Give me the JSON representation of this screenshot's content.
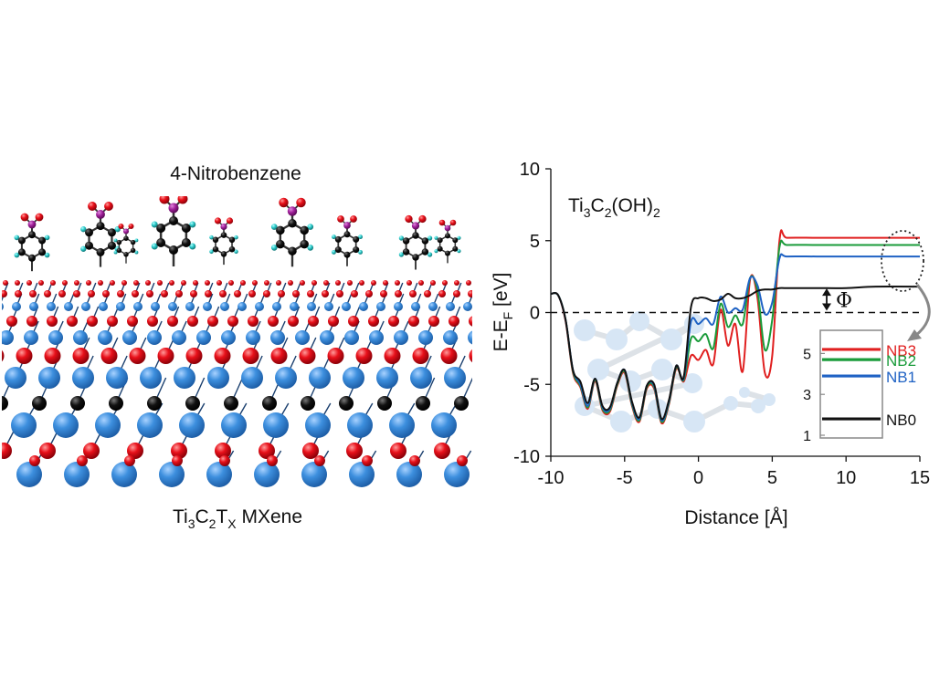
{
  "left_panel": {
    "top_label": "4-Nitrobenzene",
    "bottom_label": {
      "base": "Ti",
      "s1": "3",
      "mid1": "C",
      "s2": "2",
      "mid2": "T",
      "s3": "X",
      "tail": " MXene"
    },
    "atom_colors": {
      "ti": "#3d8fde",
      "c": "#111111",
      "o": "#e8101a",
      "n": "#a0209a",
      "h": "#29c8c8"
    }
  },
  "chart_data": {
    "type": "line",
    "title": {
      "base": "Ti",
      "s1": "3",
      "mid": "C",
      "s2": "2",
      "tail": "(OH)",
      "s3": "2"
    },
    "xlabel": "Distance [Å]",
    "ylabel": {
      "base": "E-E",
      "sub": "F",
      "tail": " [eV]"
    },
    "xlim": [
      -10,
      15
    ],
    "ylim": [
      -10,
      10
    ],
    "xticks": [
      "-10",
      "-5",
      "0",
      "5",
      "10",
      "15"
    ],
    "yticks": [
      "10",
      "5",
      "0",
      "-5",
      "-10"
    ],
    "fermi_level": 0,
    "phi_label": "Φ",
    "series": [
      {
        "name": "NB0",
        "color": "#111111",
        "x": [
          -10,
          -9.5,
          -9,
          -8.5,
          -8,
          -7.5,
          -7,
          -6.5,
          -6,
          -5.5,
          -5,
          -4.5,
          -4,
          -3.5,
          -3,
          -2.5,
          -2,
          -1.5,
          -1,
          -0.5,
          0,
          0.5,
          1,
          1.5,
          2,
          2.5,
          3,
          3.5,
          4,
          4.5,
          5,
          5.5,
          6,
          8,
          10,
          12,
          15
        ],
        "y": [
          1.3,
          1.2,
          -0.5,
          -4.0,
          -4.8,
          -6.3,
          -4.6,
          -6.5,
          -6.6,
          -4.9,
          -4.0,
          -6.2,
          -7.3,
          -5.1,
          -5.0,
          -7.4,
          -6.1,
          -3.7,
          -4.5,
          0.4,
          1.0,
          1.0,
          0.8,
          0.9,
          1.3,
          1.0,
          1.0,
          1.2,
          1.5,
          1.6,
          1.6,
          1.7,
          1.7,
          1.7,
          1.7,
          1.8,
          1.8
        ]
      },
      {
        "name": "NB1",
        "color": "#1f62c4",
        "x": [
          -10,
          -9.5,
          -9,
          -8.5,
          -8,
          -7.5,
          -7,
          -6.5,
          -6,
          -5.5,
          -5,
          -4.5,
          -4,
          -3.5,
          -3,
          -2.5,
          -2,
          -1.5,
          -1,
          -0.5,
          0,
          0.5,
          1,
          1.5,
          2,
          2.5,
          3,
          3.5,
          4,
          4.5,
          5,
          5.5,
          6,
          8,
          10,
          12,
          15
        ],
        "y": [
          1.3,
          1.2,
          -0.5,
          -4.0,
          -5.0,
          -6.5,
          -4.6,
          -6.6,
          -6.7,
          -4.9,
          -4.0,
          -6.3,
          -7.4,
          -5.1,
          -5.1,
          -7.5,
          -6.2,
          -3.7,
          -4.6,
          -0.6,
          -0.8,
          -0.4,
          -0.8,
          1.1,
          0.0,
          0.3,
          0.2,
          2.4,
          1.9,
          -0.1,
          0.7,
          3.8,
          3.9,
          3.9,
          3.9,
          3.9,
          3.9
        ]
      },
      {
        "name": "NB2",
        "color": "#1a9b3a",
        "x": [
          -10,
          -9.5,
          -9,
          -8.5,
          -8,
          -7.5,
          -7,
          -6.5,
          -6,
          -5.5,
          -5,
          -4.5,
          -4,
          -3.5,
          -3,
          -2.5,
          -2,
          -1.5,
          -1,
          -0.5,
          0,
          0.5,
          1,
          1.5,
          2,
          2.5,
          3,
          3.5,
          4,
          4.5,
          5,
          5.5,
          6,
          8,
          10,
          12,
          15
        ],
        "y": [
          1.3,
          1.2,
          -0.5,
          -4.1,
          -5.1,
          -6.6,
          -4.7,
          -6.7,
          -6.8,
          -5.0,
          -4.1,
          -6.4,
          -7.5,
          -5.2,
          -5.2,
          -7.6,
          -6.3,
          -3.8,
          -4.7,
          -1.8,
          -2.0,
          -1.5,
          -2.5,
          0.6,
          -1.0,
          -0.2,
          -0.8,
          2.4,
          1.5,
          -2.6,
          -0.5,
          4.6,
          4.7,
          4.7,
          4.7,
          4.7,
          4.7
        ]
      },
      {
        "name": "NB3",
        "color": "#e02020",
        "x": [
          -10,
          -9.5,
          -9,
          -8.5,
          -8,
          -7.5,
          -7,
          -6.5,
          -6,
          -5.5,
          -5,
          -4.5,
          -4,
          -3.5,
          -3,
          -2.5,
          -2,
          -1.5,
          -1,
          -0.5,
          0,
          0.5,
          1,
          1.5,
          2,
          2.5,
          3,
          3.5,
          4,
          4.5,
          5,
          5.5,
          6,
          8,
          10,
          12,
          15
        ],
        "y": [
          1.3,
          1.2,
          -0.6,
          -4.2,
          -5.2,
          -6.7,
          -4.8,
          -6.8,
          -6.9,
          -5.1,
          -4.2,
          -6.5,
          -7.6,
          -5.3,
          -5.3,
          -7.7,
          -6.4,
          -3.9,
          -4.8,
          -3.0,
          -3.3,
          -2.6,
          -3.6,
          0.2,
          -2.3,
          -0.8,
          -4.1,
          2.3,
          1.0,
          -4.2,
          -3.0,
          5.1,
          5.2,
          5.2,
          5.2,
          5.2,
          5.2
        ]
      }
    ],
    "inset": {
      "ylim": [
        1,
        6
      ],
      "yticks": [
        "5",
        "3",
        "1"
      ],
      "levels": [
        {
          "name": "NB3",
          "value": 5.2,
          "color": "#e02020"
        },
        {
          "name": "NB2",
          "value": 4.7,
          "color": "#1a9b3a"
        },
        {
          "name": "NB1",
          "value": 3.9,
          "color": "#1f62c4"
        },
        {
          "name": "NB0",
          "value": 1.8,
          "color": "#111111"
        }
      ]
    }
  }
}
